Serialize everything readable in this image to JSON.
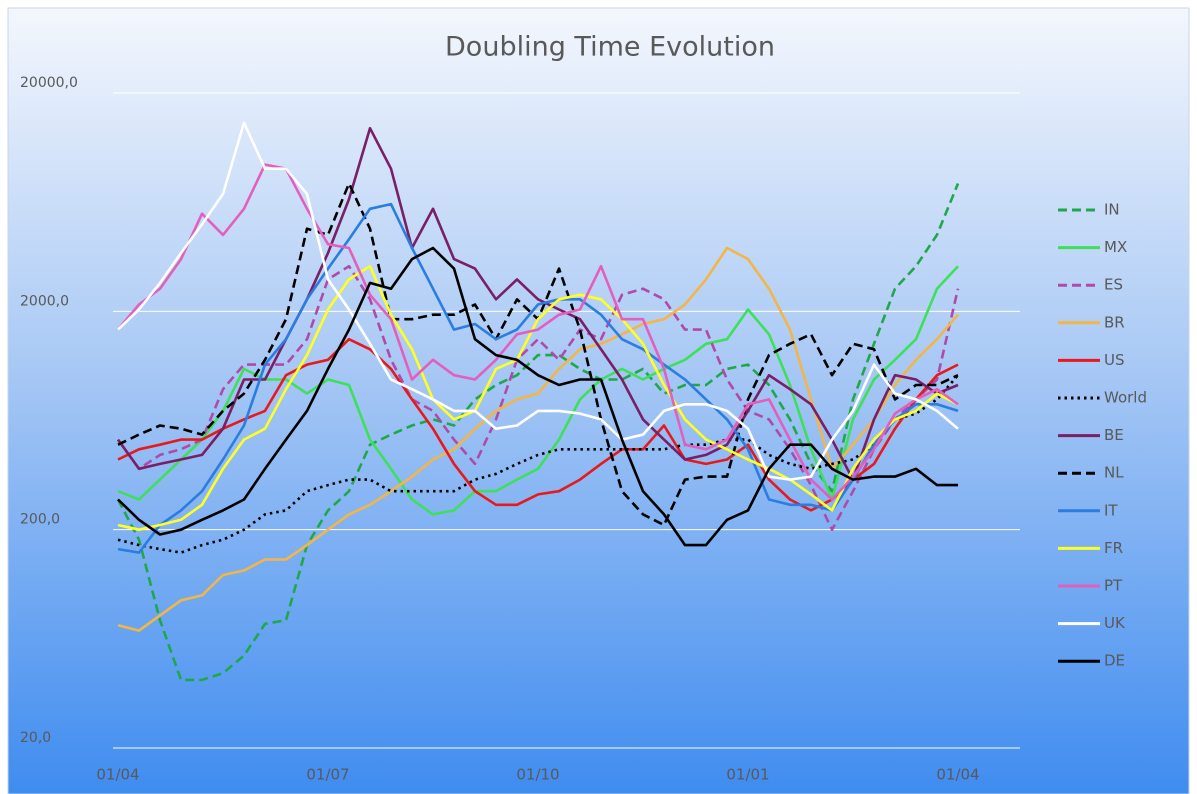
{
  "chart_data": {
    "type": "line",
    "title": "Doubling Time Evolution",
    "categories": [
      "01/04",
      null,
      null,
      null,
      null,
      null,
      null,
      null,
      null,
      null,
      "01/07",
      null,
      null,
      null,
      null,
      null,
      null,
      null,
      null,
      null,
      "01/10",
      null,
      null,
      null,
      null,
      null,
      null,
      null,
      null,
      null,
      "01/01",
      null,
      null,
      null,
      null,
      null,
      null,
      null,
      null,
      null,
      "01/04"
    ],
    "yscale": "log",
    "ylim": [
      20,
      20000
    ],
    "yticks": [
      {
        "value": 20,
        "label": "20,0"
      },
      {
        "value": 200,
        "label": "200,0"
      },
      {
        "value": 2000,
        "label": "2000,0"
      },
      {
        "value": 20000,
        "label": "20000,0"
      }
    ],
    "grid": true,
    "legend": "right",
    "series": [
      {
        "name": "IN",
        "color": "#1fa84a",
        "dash": "dashed",
        "values": [
          275,
          180,
          77,
          41,
          41,
          44,
          53,
          74,
          77,
          170,
          245,
          300,
          490,
          545,
          600,
          640,
          600,
          790,
          920,
          1020,
          1260,
          1260,
          1090,
          975,
          975,
          1090,
          840,
          920,
          920,
          1090,
          1140,
          920,
          640,
          400,
          300,
          790,
          1420,
          2540,
          3220,
          4480,
          7700
        ]
      },
      {
        "name": "MX",
        "color": "#3ee05a",
        "dash": "solid",
        "values": [
          300,
          275,
          339,
          419,
          517,
          700,
          1090,
          975,
          975,
          840,
          975,
          920,
          517,
          380,
          275,
          235,
          245,
          300,
          300,
          339,
          380,
          517,
          790,
          975,
          1090,
          975,
          1090,
          1200,
          1420,
          1490,
          2040,
          1570,
          920,
          467,
          275,
          640,
          975,
          1200,
          1490,
          2540,
          3220
        ]
      },
      {
        "name": "ES",
        "color": "#b04aa8",
        "dash": "dashed",
        "values": [
          517,
          380,
          440,
          467,
          517,
          880,
          1140,
          1140,
          1140,
          1490,
          2800,
          3220,
          2270,
          1200,
          790,
          700,
          517,
          400,
          640,
          1200,
          1490,
          1200,
          1650,
          1490,
          2380,
          2540,
          2270,
          1650,
          1650,
          975,
          700,
          640,
          467,
          320,
          200,
          300,
          467,
          640,
          790,
          975,
          2540
        ]
      },
      {
        "name": "BR",
        "color": "#f2b648",
        "dash": "solid",
        "values": [
          73,
          69,
          81,
          95,
          100,
          124,
          130,
          146,
          146,
          170,
          200,
          235,
          260,
          300,
          350,
          419,
          467,
          580,
          700,
          790,
          840,
          1090,
          1340,
          1420,
          1570,
          1750,
          1840,
          2150,
          2800,
          3900,
          3470,
          2540,
          1650,
          790,
          380,
          490,
          640,
          920,
          1200,
          1490,
          1930
        ]
      },
      {
        "name": "US",
        "color": "#e8191c",
        "dash": "solid",
        "values": [
          419,
          467,
          490,
          517,
          517,
          580,
          640,
          700,
          1020,
          1140,
          1200,
          1490,
          1340,
          1090,
          790,
          580,
          400,
          300,
          260,
          260,
          290,
          300,
          339,
          400,
          467,
          467,
          600,
          419,
          400,
          419,
          490,
          339,
          275,
          245,
          275,
          339,
          400,
          580,
          790,
          1020,
          1140
        ]
      },
      {
        "name": "World",
        "color": "#000000",
        "dash": "dotted",
        "values": [
          180,
          170,
          163,
          157,
          170,
          180,
          200,
          235,
          245,
          300,
          320,
          339,
          339,
          300,
          300,
          300,
          300,
          339,
          360,
          400,
          440,
          467,
          467,
          467,
          467,
          467,
          467,
          490,
          490,
          517,
          517,
          440,
          400,
          380,
          400,
          419,
          490,
          640,
          680,
          790,
          1020
        ]
      },
      {
        "name": "BE",
        "color": "#7a1e66",
        "dash": "solid",
        "values": [
          517,
          380,
          400,
          419,
          440,
          580,
          975,
          975,
          1490,
          2270,
          3700,
          6530,
          13800,
          9000,
          3900,
          5900,
          3470,
          3140,
          2270,
          2800,
          2270,
          2040,
          1840,
          1340,
          975,
          640,
          517,
          419,
          440,
          490,
          700,
          1020,
          880,
          750,
          517,
          339,
          640,
          1020,
          975,
          840,
          920
        ]
      },
      {
        "name": "NL",
        "color": "#000000",
        "dash": "dashed",
        "values": [
          490,
          545,
          600,
          580,
          545,
          700,
          840,
          1200,
          1840,
          4780,
          4480,
          7700,
          4780,
          1840,
          1840,
          1930,
          1930,
          2150,
          1490,
          2270,
          1840,
          3140,
          1650,
          640,
          300,
          235,
          210,
          339,
          350,
          350,
          790,
          1260,
          1420,
          1570,
          1020,
          1420,
          1340,
          790,
          920,
          920,
          1020
        ]
      },
      {
        "name": "IT",
        "color": "#2a7de1",
        "dash": "solid",
        "values": [
          163,
          157,
          210,
          245,
          300,
          419,
          600,
          1140,
          1490,
          2270,
          3140,
          4280,
          5900,
          6200,
          3900,
          2540,
          1650,
          1750,
          1490,
          1650,
          2150,
          2270,
          2270,
          1930,
          1490,
          1340,
          1140,
          975,
          790,
          640,
          467,
          275,
          260,
          260,
          245,
          339,
          490,
          640,
          750,
          750,
          700
        ]
      },
      {
        "name": "FR",
        "color": "#ffff22",
        "dash": "solid",
        "values": [
          210,
          200,
          210,
          222,
          260,
          380,
          517,
          580,
          880,
          1260,
          2040,
          2800,
          3220,
          1930,
          1340,
          790,
          640,
          700,
          1090,
          1200,
          1840,
          2270,
          2380,
          2270,
          1840,
          1420,
          920,
          640,
          517,
          467,
          419,
          380,
          339,
          290,
          245,
          380,
          517,
          640,
          700,
          840,
          750
        ]
      },
      {
        "name": "PT",
        "color": "#e35fbd",
        "dash": "solid",
        "values": [
          1650,
          2150,
          2540,
          3470,
          5600,
          4480,
          5900,
          9400,
          9000,
          5900,
          4060,
          3900,
          2380,
          1840,
          975,
          1200,
          1020,
          975,
          1200,
          1570,
          1650,
          1930,
          2040,
          3220,
          1840,
          1840,
          1090,
          490,
          467,
          517,
          750,
          790,
          517,
          339,
          275,
          350,
          467,
          680,
          790,
          880,
          750
        ]
      },
      {
        "name": "UK",
        "color": "#ffffff",
        "dash": "solid",
        "values": [
          1650,
          2040,
          2700,
          3700,
          5000,
          6900,
          14600,
          9000,
          9000,
          6900,
          2800,
          2040,
          1420,
          975,
          880,
          790,
          700,
          700,
          580,
          600,
          700,
          700,
          680,
          640,
          517,
          545,
          700,
          750,
          750,
          700,
          580,
          350,
          339,
          350,
          517,
          700,
          1140,
          840,
          790,
          700,
          580
        ]
      },
      {
        "name": "DE",
        "color": "#000000",
        "dash": "solid",
        "values": [
          275,
          222,
          190,
          200,
          222,
          245,
          275,
          380,
          517,
          700,
          1090,
          1650,
          2700,
          2540,
          3470,
          3900,
          3140,
          1490,
          1260,
          1200,
          1020,
          920,
          975,
          975,
          517,
          300,
          235,
          170,
          170,
          222,
          245,
          380,
          490,
          490,
          380,
          339,
          350,
          350,
          380,
          320,
          320
        ]
      }
    ]
  }
}
